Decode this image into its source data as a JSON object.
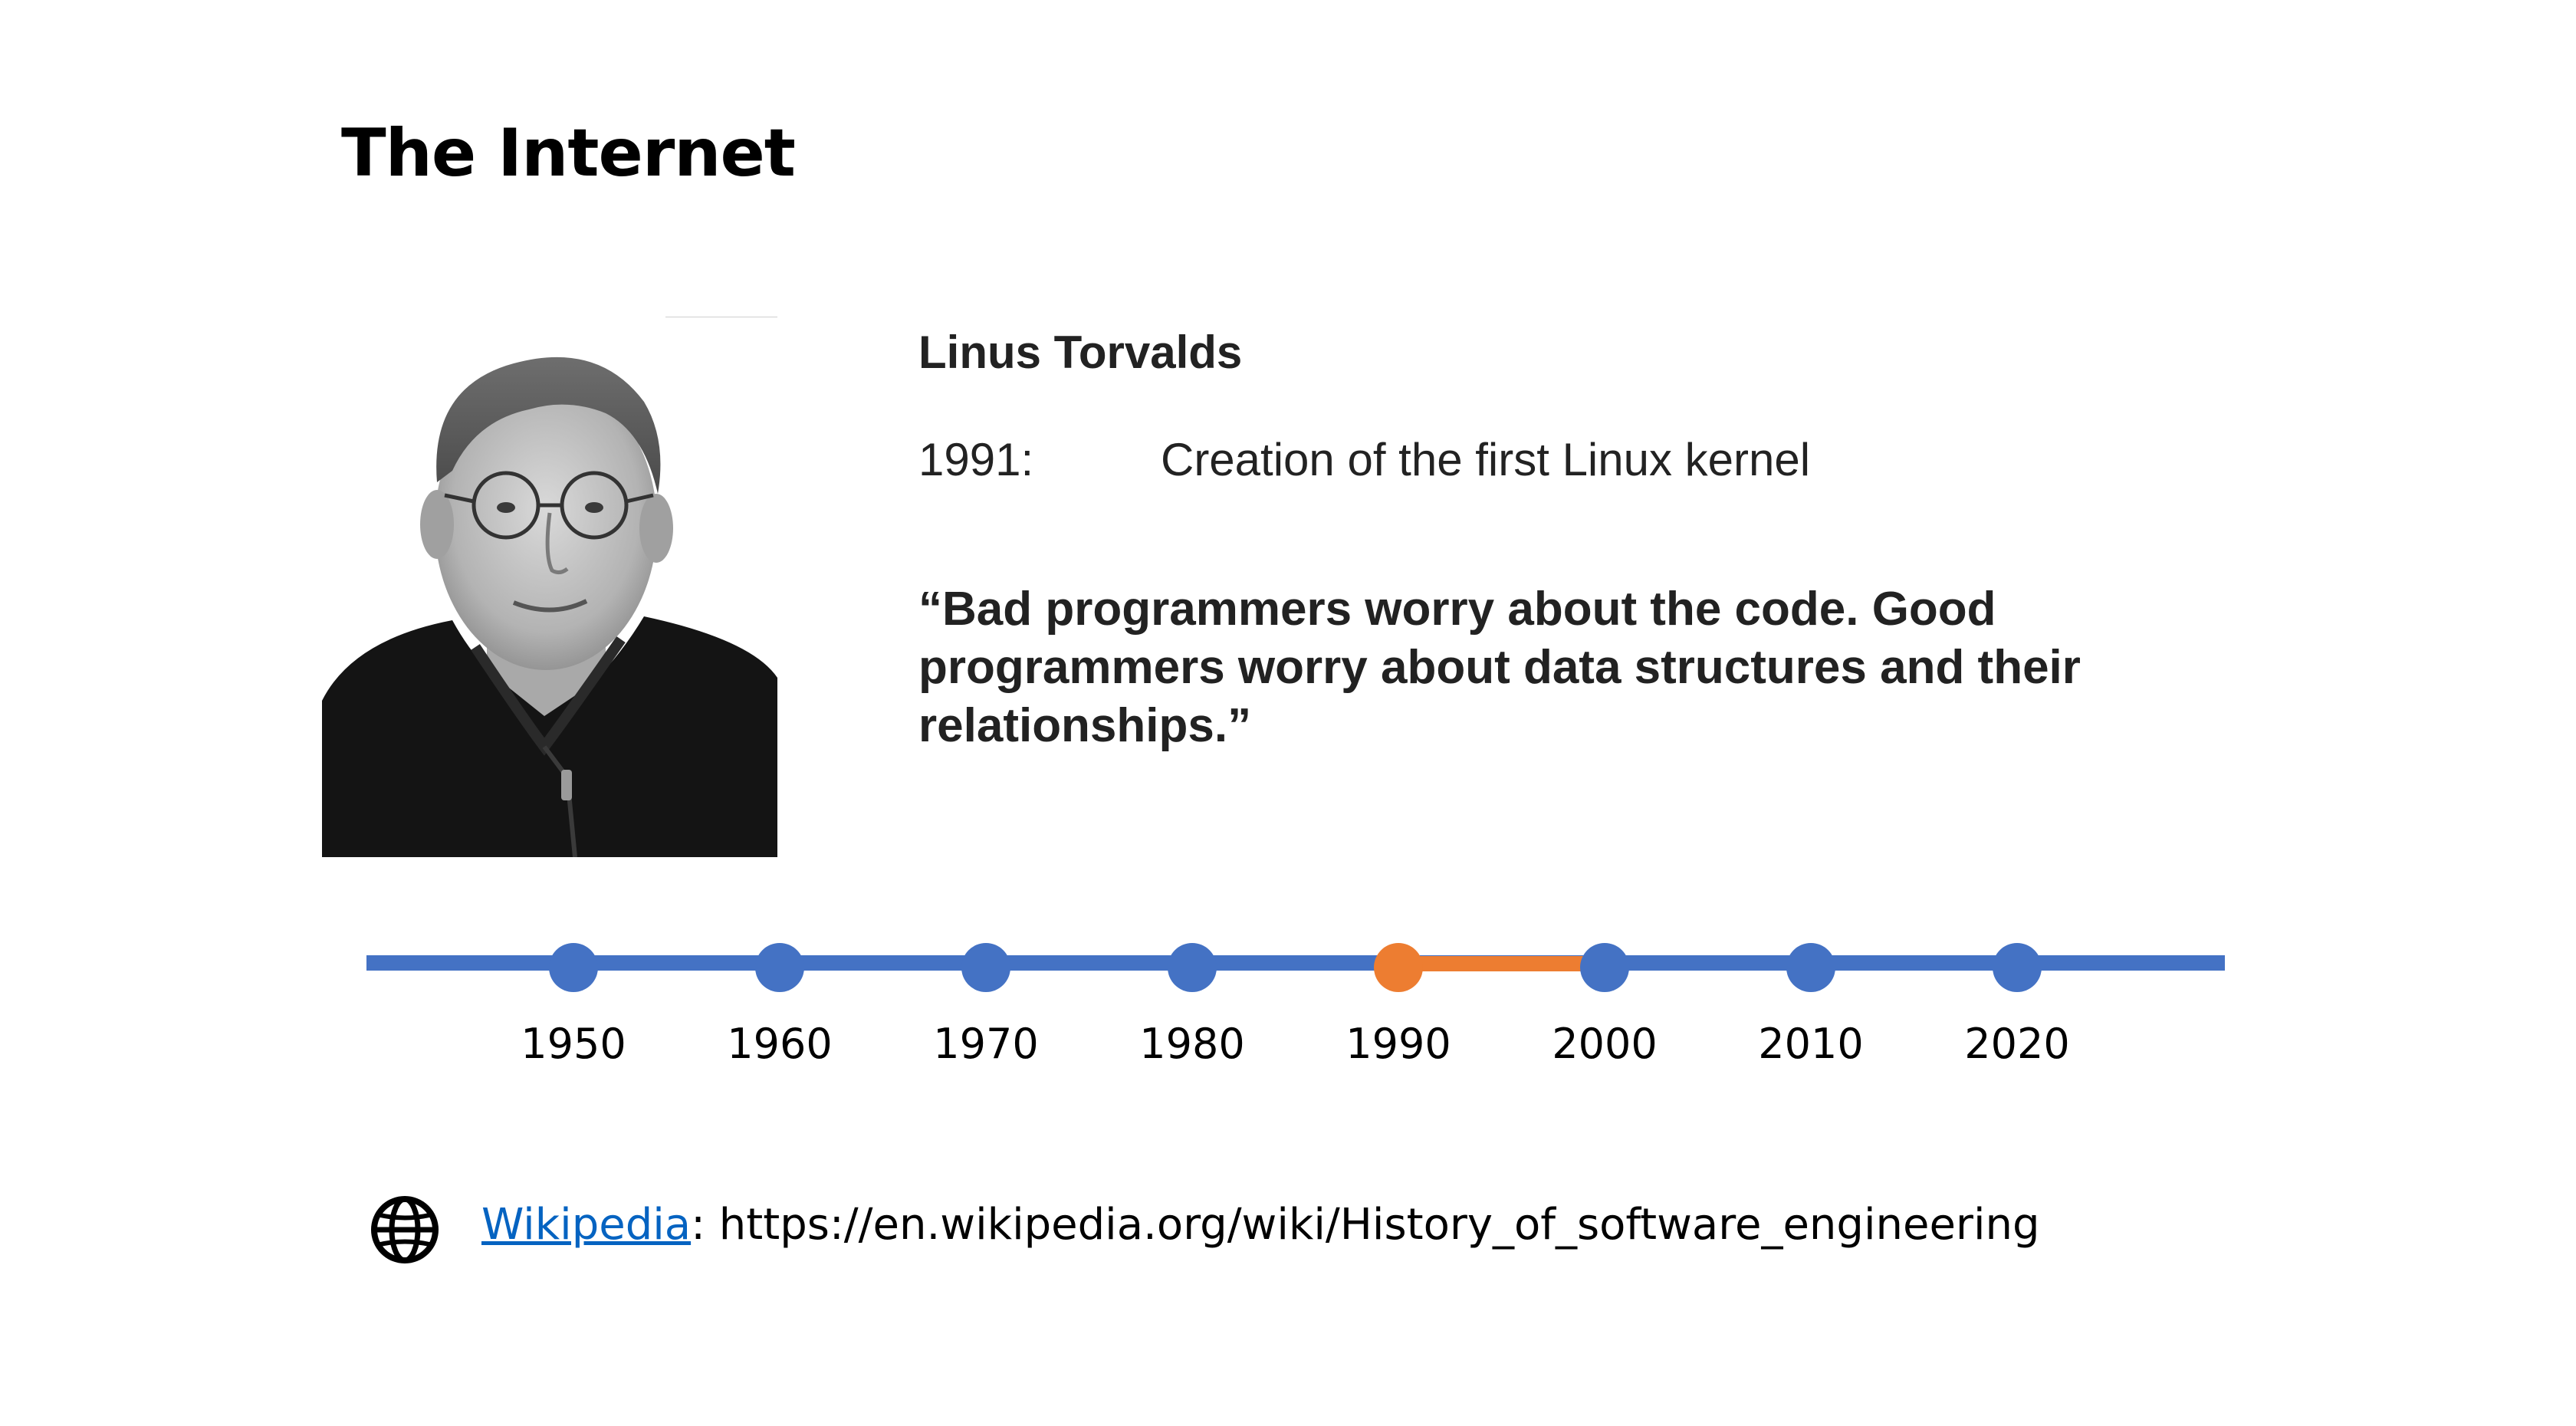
{
  "slide": {
    "title": "The Internet"
  },
  "profile": {
    "name": "Linus Torvalds",
    "event_year": "1991:",
    "event_description": "Creation of the first Linux kernel",
    "quote_lines": [
      "“Bad programmers worry about the code. Good",
      "programmers worry about data structures and their",
      "relationships.”"
    ]
  },
  "timeline": {
    "labels": [
      "1950",
      "1960",
      "1970",
      "1980",
      "1990",
      "2000",
      "2010",
      "2020"
    ],
    "highlighted": "1990",
    "colors": {
      "line": "#4472c4",
      "highlight": "#ed7d31"
    }
  },
  "source": {
    "icon": "globe-icon",
    "link_text": "Wikipedia",
    "separator": ":",
    "url": "https://en.wikipedia.org/wiki/History_of_software_engineering",
    "link_color": "#0563c1"
  }
}
